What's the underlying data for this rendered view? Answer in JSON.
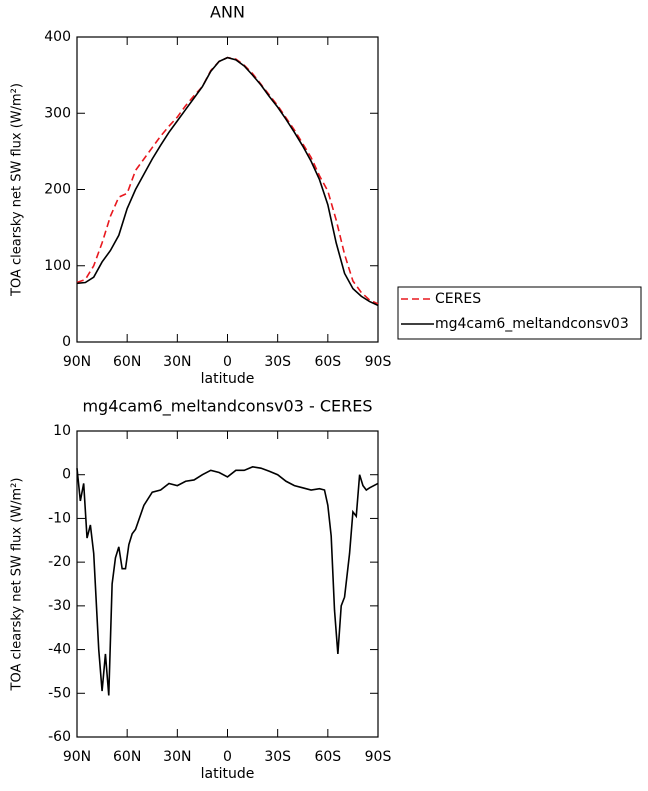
{
  "chart_data": [
    {
      "type": "line",
      "title": "ANN",
      "x_label": "latitude",
      "y_label": "TOA clearsky net SW flux (W/m²)",
      "x": [
        90,
        85,
        80,
        75,
        70,
        65,
        60,
        55,
        50,
        45,
        40,
        35,
        30,
        25,
        20,
        15,
        10,
        5,
        0,
        -5,
        -10,
        -15,
        -20,
        -25,
        -30,
        -35,
        -40,
        -45,
        -50,
        -55,
        -60,
        -65,
        -70,
        -75,
        -80,
        -85,
        -90
      ],
      "series": [
        {
          "name": "CERES",
          "color": "#e8181e",
          "dashed": true,
          "values": [
            78,
            82,
            100,
            130,
            165,
            190,
            195,
            225,
            240,
            255,
            270,
            283,
            295,
            310,
            323,
            335,
            356,
            368,
            373,
            371,
            363,
            352,
            338,
            324,
            310,
            294,
            278,
            260,
            242,
            218,
            198,
            160,
            115,
            80,
            65,
            55,
            50
          ]
        },
        {
          "name": "mg4cam6_meltandconsv03",
          "color": "#000000",
          "dashed": false,
          "values": [
            77,
            78,
            85,
            105,
            120,
            140,
            175,
            200,
            220,
            240,
            258,
            275,
            290,
            305,
            320,
            335,
            355,
            368,
            373,
            370,
            362,
            350,
            337,
            322,
            308,
            292,
            275,
            257,
            237,
            213,
            180,
            130,
            90,
            70,
            60,
            53,
            48
          ]
        }
      ],
      "xlim": [
        90,
        -90
      ],
      "xticks": [
        {
          "value": 90,
          "label": "90N"
        },
        {
          "value": 60,
          "label": "60N"
        },
        {
          "value": 30,
          "label": "30N"
        },
        0,
        {
          "value": -30,
          "label": "30S"
        },
        {
          "value": -60,
          "label": "60S"
        },
        {
          "value": -90,
          "label": "90S"
        }
      ],
      "ylim": [
        0,
        400
      ],
      "yticks": [
        0,
        100,
        200,
        300,
        400
      ],
      "legend": "right"
    },
    {
      "type": "line",
      "title": "mg4cam6_meltandconsv03 - CERES",
      "x_label": "latitude",
      "y_label": "TOA clearsky net SW flux (W/m²)",
      "x": [
        90,
        88,
        86,
        84,
        82,
        80,
        77,
        75,
        73,
        71,
        69,
        67,
        65,
        63,
        61,
        59,
        57,
        55,
        50,
        45,
        40,
        35,
        30,
        25,
        20,
        15,
        10,
        5,
        0,
        -5,
        -10,
        -15,
        -20,
        -25,
        -30,
        -35,
        -40,
        -45,
        -50,
        -55,
        -58,
        -60,
        -62,
        -64,
        -66,
        -68,
        -70,
        -73,
        -75,
        -77,
        -79,
        -81,
        -83,
        -85,
        -90
      ],
      "series": [
        {
          "color": "#000000",
          "dashed": false,
          "values": [
            1.5,
            -6,
            -2,
            -14.5,
            -11.5,
            -18,
            -40,
            -49.5,
            -41,
            -50.5,
            -25,
            -19,
            -16.5,
            -21.5,
            -21.5,
            -16,
            -13.5,
            -12.5,
            -7,
            -4,
            -3.5,
            -2,
            -2.5,
            -1.5,
            -1.2,
            0,
            1,
            0.5,
            -0.5,
            1,
            1,
            1.8,
            1.5,
            0.8,
            0,
            -1.5,
            -2.5,
            -3,
            -3.5,
            -3.2,
            -3.5,
            -7,
            -14,
            -31,
            -41,
            -30,
            -28,
            -18,
            -8.5,
            -9.5,
            0,
            -2.5,
            -3.5,
            -3,
            -2
          ]
        }
      ],
      "xlim": [
        90,
        -90
      ],
      "xticks": [
        {
          "value": 90,
          "label": "90N"
        },
        {
          "value": 60,
          "label": "60N"
        },
        {
          "value": 30,
          "label": "30N"
        },
        0,
        {
          "value": -30,
          "label": "30S"
        },
        {
          "value": -60,
          "label": "60S"
        },
        {
          "value": -90,
          "label": "90S"
        }
      ],
      "ylim": [
        -60,
        10
      ],
      "yticks": [
        -60,
        -50,
        -40,
        -30,
        -20,
        -10,
        0,
        10
      ]
    }
  ]
}
